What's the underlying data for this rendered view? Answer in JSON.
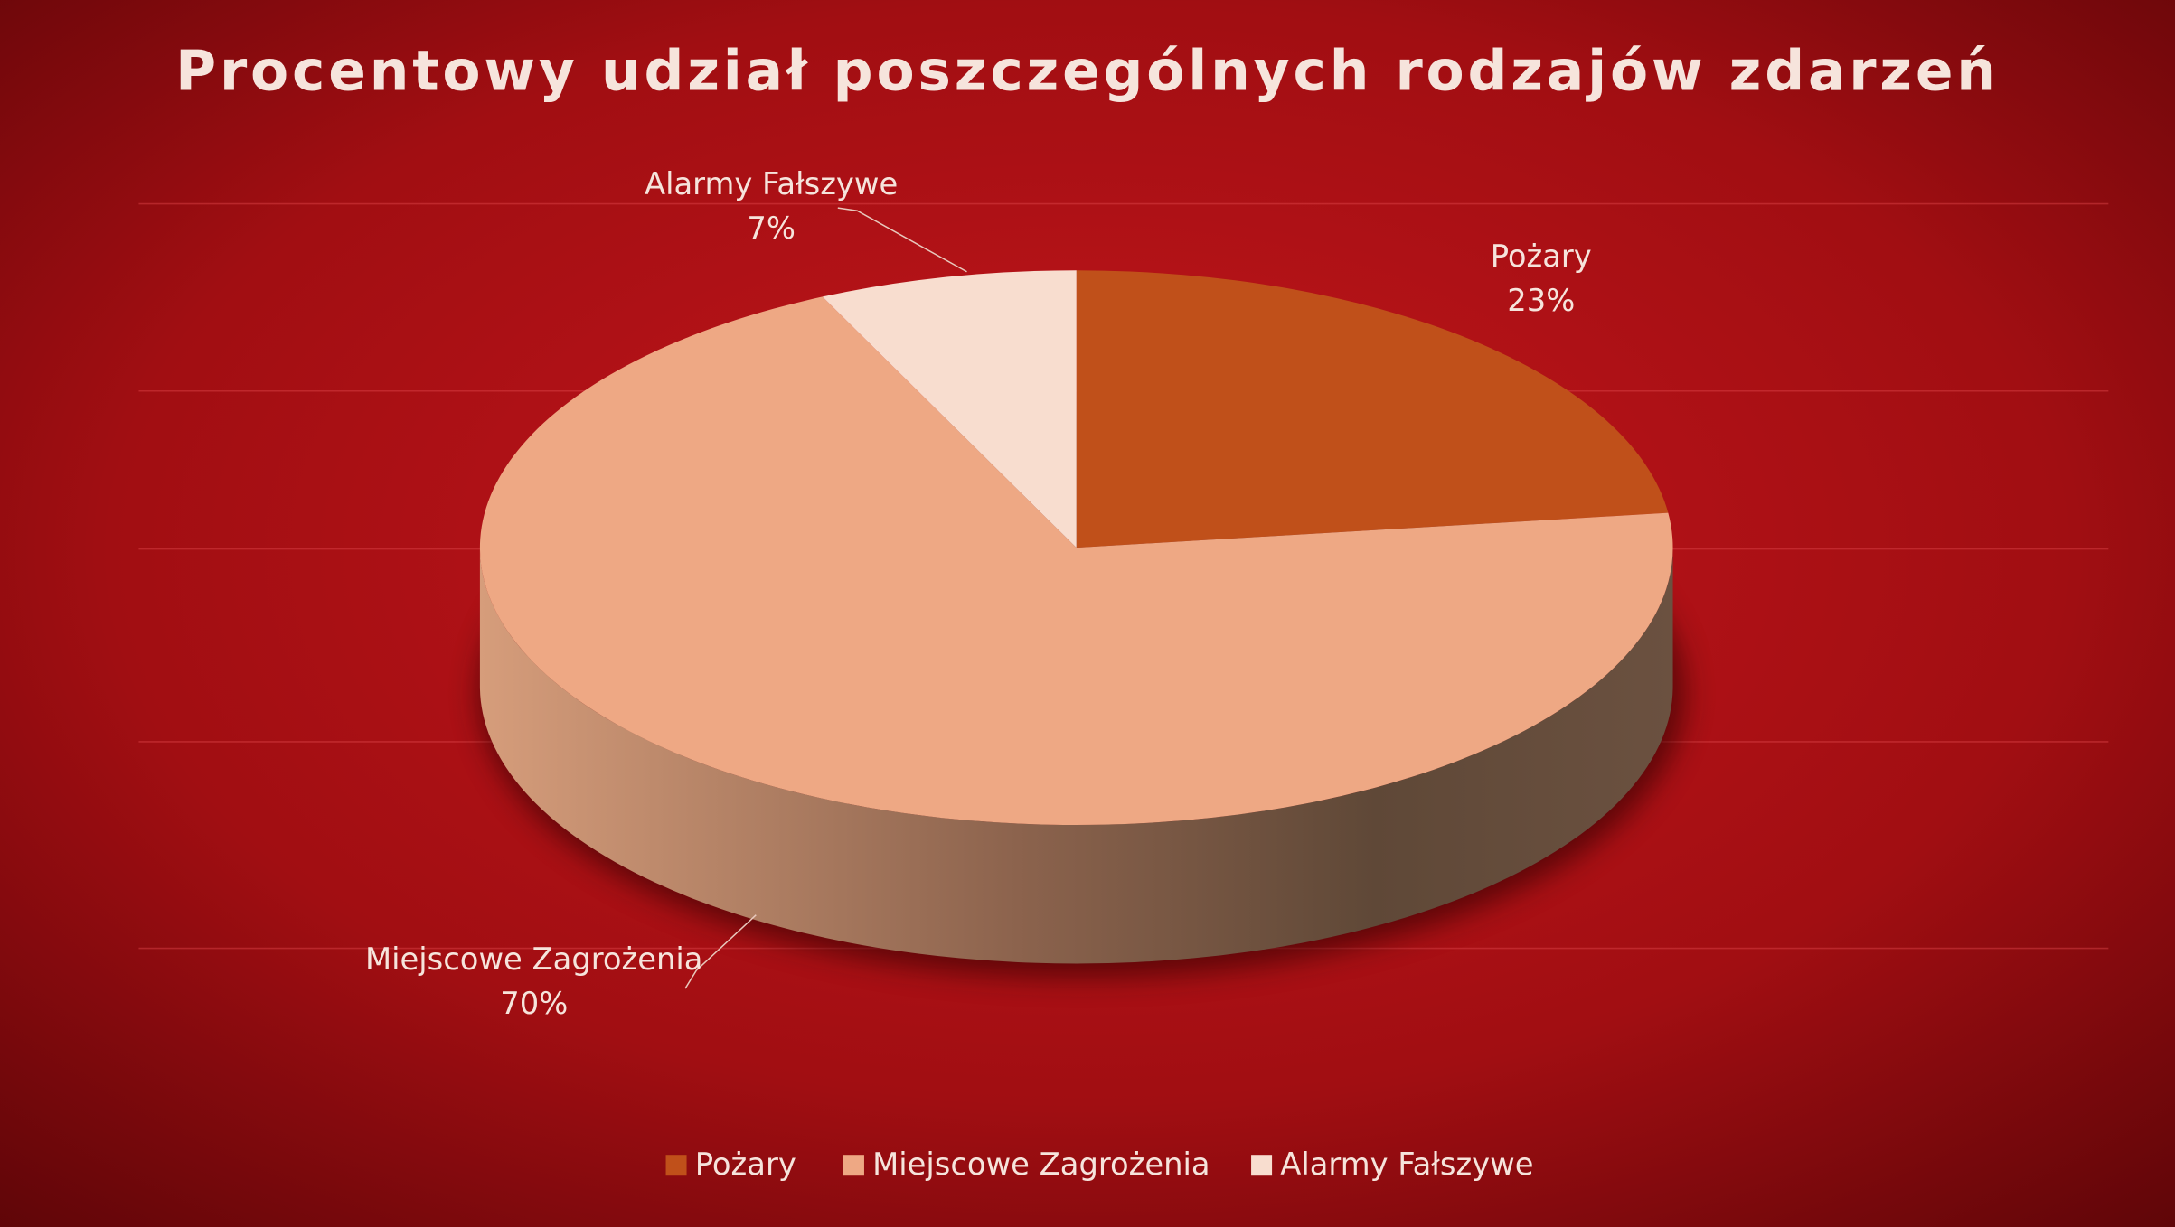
{
  "chart_data": {
    "type": "pie3d",
    "title": "Procentowy udział poszczególnych rodzajów zdarzeń",
    "categories": [
      "Pożary",
      "Miejscowe Zagrożenia",
      "Alarmy Fałszywe"
    ],
    "values": [
      23,
      70,
      7
    ],
    "value_labels": [
      "23%",
      "70%",
      "7%"
    ],
    "colors": [
      "#c0501a",
      "#eea884",
      "#f8ddcf"
    ],
    "legend": "bottom"
  }
}
